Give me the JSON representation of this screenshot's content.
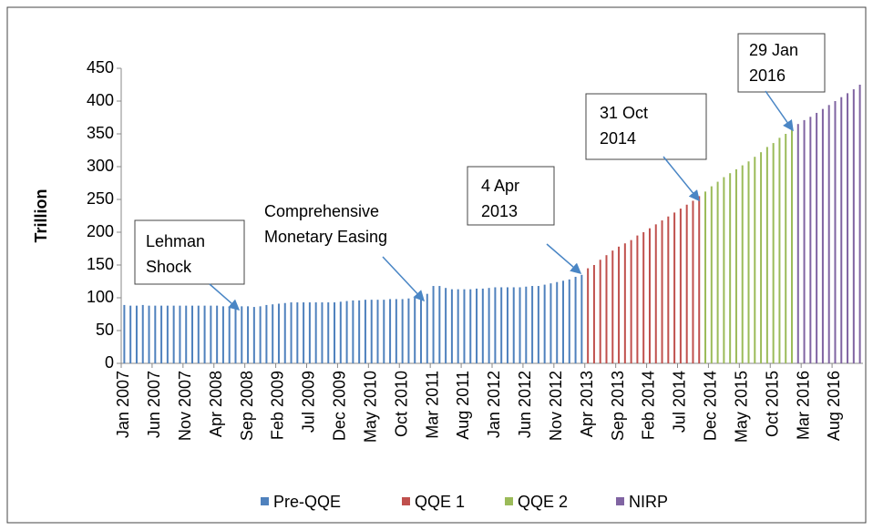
{
  "chart_data": {
    "type": "bar",
    "y_label": "Trillion",
    "categories": [
      "Jan 2007",
      null,
      null,
      null,
      null,
      "Jun 2007",
      null,
      null,
      null,
      null,
      "Nov 2007",
      null,
      null,
      null,
      null,
      "Apr 2008",
      null,
      null,
      null,
      null,
      "Sep 2008",
      null,
      null,
      null,
      null,
      "Feb 2009",
      null,
      null,
      null,
      null,
      "Jul 2009",
      null,
      null,
      null,
      null,
      "Dec 2009",
      null,
      null,
      null,
      null,
      "May 2010",
      null,
      null,
      null,
      null,
      "Oct 2010",
      null,
      null,
      null,
      null,
      "Mar 2011",
      null,
      null,
      null,
      null,
      "Aug 2011",
      null,
      null,
      null,
      null,
      "Jan 2012",
      null,
      null,
      null,
      null,
      "Jun 2012",
      null,
      null,
      null,
      null,
      "Nov 2012",
      null,
      null,
      null,
      null,
      "Apr 2013",
      null,
      null,
      null,
      null,
      "Sep 2013",
      null,
      null,
      null,
      null,
      "Feb 2014",
      null,
      null,
      null,
      null,
      "Jul 2014",
      null,
      null,
      null,
      null,
      "Dec 2014",
      null,
      null,
      null,
      null,
      "May 2015",
      null,
      null,
      null,
      null,
      "Oct 2015",
      null,
      null,
      null,
      null,
      "Mar 2016",
      null,
      null,
      null,
      null,
      "Aug 2016",
      null,
      null,
      null,
      null
    ],
    "series": [
      {
        "name": "Pre-QQE",
        "color": "#4f81bd",
        "values": [
          89,
          88,
          88,
          89,
          88,
          88,
          88,
          88,
          88,
          88,
          88,
          88,
          88,
          88,
          88,
          88,
          87,
          87,
          87,
          87,
          87,
          86,
          87,
          89,
          90,
          91,
          92,
          93,
          93,
          93,
          93,
          93,
          93,
          93,
          93,
          94,
          95,
          96,
          96,
          97,
          97,
          97,
          97,
          98,
          98,
          98,
          99,
          100,
          103,
          106,
          118,
          118,
          115,
          113,
          113,
          113,
          113,
          114,
          114,
          115,
          116,
          116,
          116,
          116,
          116,
          117,
          118,
          118,
          120,
          122,
          124,
          126,
          128,
          132,
          135,
          null,
          null,
          null,
          null,
          null,
          null,
          null,
          null,
          null,
          null,
          null,
          null,
          null,
          null,
          null,
          null,
          null,
          null,
          null,
          null,
          null,
          null,
          null,
          null,
          null,
          null,
          null,
          null,
          null,
          null,
          null,
          null,
          null,
          null,
          null,
          null,
          null,
          null,
          null,
          null,
          null,
          null,
          null,
          null,
          null
        ]
      },
      {
        "name": "QQE 1",
        "color": "#c0504d",
        "values": [
          null,
          null,
          null,
          null,
          null,
          null,
          null,
          null,
          null,
          null,
          null,
          null,
          null,
          null,
          null,
          null,
          null,
          null,
          null,
          null,
          null,
          null,
          null,
          null,
          null,
          null,
          null,
          null,
          null,
          null,
          null,
          null,
          null,
          null,
          null,
          null,
          null,
          null,
          null,
          null,
          null,
          null,
          null,
          null,
          null,
          null,
          null,
          null,
          null,
          null,
          null,
          null,
          null,
          null,
          null,
          null,
          null,
          null,
          null,
          null,
          null,
          null,
          null,
          null,
          null,
          null,
          null,
          null,
          null,
          null,
          null,
          null,
          null,
          null,
          null,
          145,
          150,
          158,
          165,
          172,
          178,
          183,
          188,
          195,
          200,
          206,
          212,
          218,
          224,
          230,
          236,
          242,
          248,
          255,
          null,
          null,
          null,
          null,
          null,
          null,
          null,
          null,
          null,
          null,
          null,
          null,
          null,
          null,
          null,
          null,
          null,
          null,
          null,
          null,
          null,
          null,
          null,
          null,
          null,
          null
        ]
      },
      {
        "name": "QQE 2",
        "color": "#9bbb59",
        "values": [
          null,
          null,
          null,
          null,
          null,
          null,
          null,
          null,
          null,
          null,
          null,
          null,
          null,
          null,
          null,
          null,
          null,
          null,
          null,
          null,
          null,
          null,
          null,
          null,
          null,
          null,
          null,
          null,
          null,
          null,
          null,
          null,
          null,
          null,
          null,
          null,
          null,
          null,
          null,
          null,
          null,
          null,
          null,
          null,
          null,
          null,
          null,
          null,
          null,
          null,
          null,
          null,
          null,
          null,
          null,
          null,
          null,
          null,
          null,
          null,
          null,
          null,
          null,
          null,
          null,
          null,
          null,
          null,
          null,
          null,
          null,
          null,
          null,
          null,
          null,
          null,
          null,
          null,
          null,
          null,
          null,
          null,
          null,
          null,
          null,
          null,
          null,
          null,
          null,
          null,
          null,
          null,
          null,
          null,
          262,
          270,
          277,
          284,
          290,
          296,
          302,
          308,
          315,
          322,
          330,
          336,
          344,
          350,
          358,
          null,
          null,
          null,
          null,
          null,
          null,
          null,
          null,
          null,
          null,
          null
        ]
      },
      {
        "name": "NIRP",
        "color": "#8064a2",
        "values": [
          null,
          null,
          null,
          null,
          null,
          null,
          null,
          null,
          null,
          null,
          null,
          null,
          null,
          null,
          null,
          null,
          null,
          null,
          null,
          null,
          null,
          null,
          null,
          null,
          null,
          null,
          null,
          null,
          null,
          null,
          null,
          null,
          null,
          null,
          null,
          null,
          null,
          null,
          null,
          null,
          null,
          null,
          null,
          null,
          null,
          null,
          null,
          null,
          null,
          null,
          null,
          null,
          null,
          null,
          null,
          null,
          null,
          null,
          null,
          null,
          null,
          null,
          null,
          null,
          null,
          null,
          null,
          null,
          null,
          null,
          null,
          null,
          null,
          null,
          null,
          null,
          null,
          null,
          null,
          null,
          null,
          null,
          null,
          null,
          null,
          null,
          null,
          null,
          null,
          null,
          null,
          null,
          null,
          null,
          null,
          null,
          null,
          null,
          null,
          null,
          null,
          null,
          null,
          null,
          null,
          null,
          null,
          null,
          null,
          365,
          371,
          376,
          382,
          388,
          394,
          400,
          406,
          412,
          418,
          425
        ]
      }
    ],
    "ylim": [
      0,
      450
    ],
    "yticks": [
      0,
      50,
      100,
      150,
      200,
      250,
      300,
      350,
      400,
      450
    ],
    "annotations": [
      {
        "lines": [
          "Lehman",
          "Shock"
        ]
      },
      {
        "lines": [
          "Comprehensive",
          "Monetary Easing"
        ]
      },
      {
        "lines": [
          "4 Apr",
          "2013"
        ]
      },
      {
        "lines": [
          "31 Oct",
          "2014"
        ]
      },
      {
        "lines": [
          "29 Jan",
          "2016"
        ]
      }
    ]
  }
}
